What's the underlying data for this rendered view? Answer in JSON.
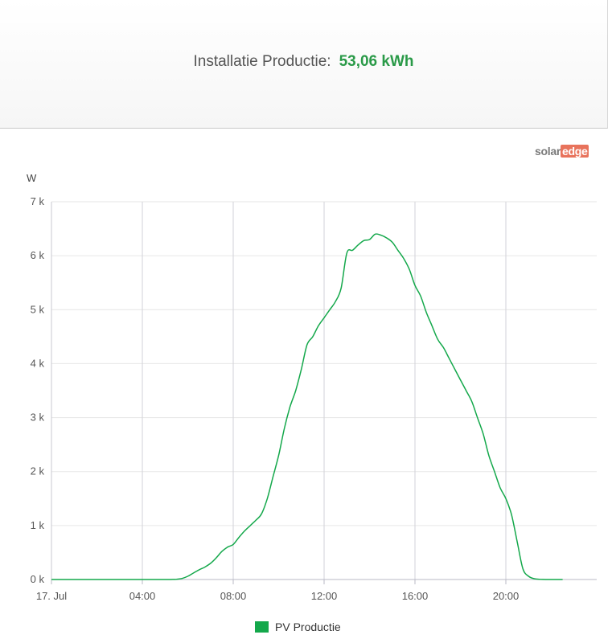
{
  "summary": {
    "label": "Installatie Productie:",
    "value": "53,06 kWh"
  },
  "logo": {
    "part1": "solar",
    "part2": "edge"
  },
  "chart_data": {
    "type": "line",
    "ylabel": "W",
    "x_ticks": [
      "17. Jul",
      "04:00",
      "08:00",
      "12:00",
      "16:00",
      "20:00"
    ],
    "y_ticks": [
      "0 k",
      "1 k",
      "2 k",
      "3 k",
      "4 k",
      "5 k",
      "6 k",
      "7 k"
    ],
    "ylim": [
      0,
      7000
    ],
    "xlim_hours": [
      0,
      24
    ],
    "grid": true,
    "legend_position": "bottom-center",
    "colors": {
      "line": "#14a84b",
      "grid": "#d2d2d8"
    },
    "series": [
      {
        "name": "PV Productie",
        "x": [
          0,
          1,
          2,
          3,
          4,
          5,
          5.25,
          5.5,
          5.75,
          6,
          6.25,
          6.5,
          6.75,
          7,
          7.25,
          7.5,
          7.75,
          8,
          8.25,
          8.5,
          8.75,
          9,
          9.25,
          9.5,
          9.75,
          10,
          10.25,
          10.5,
          10.75,
          11,
          11.25,
          11.5,
          11.75,
          12,
          12.25,
          12.5,
          12.75,
          13,
          13.25,
          13.5,
          13.75,
          14,
          14.25,
          14.5,
          14.75,
          15,
          15.25,
          15.5,
          15.75,
          16,
          16.25,
          16.5,
          16.75,
          17,
          17.25,
          17.5,
          17.75,
          18,
          18.25,
          18.5,
          18.75,
          19,
          19.25,
          19.5,
          19.75,
          20,
          20.25,
          20.5,
          20.75,
          21,
          21.25,
          21.5,
          21.75,
          22,
          22.5
        ],
        "values": [
          0,
          0,
          0,
          0,
          0,
          0,
          0,
          5,
          20,
          60,
          120,
          180,
          230,
          300,
          400,
          520,
          600,
          650,
          780,
          900,
          1000,
          1100,
          1220,
          1500,
          1900,
          2300,
          2800,
          3200,
          3500,
          3900,
          4350,
          4500,
          4700,
          4850,
          5000,
          5150,
          5400,
          6050,
          6100,
          6200,
          6280,
          6300,
          6400,
          6380,
          6330,
          6250,
          6100,
          5950,
          5750,
          5450,
          5250,
          4950,
          4700,
          4450,
          4300,
          4100,
          3900,
          3700,
          3500,
          3300,
          3000,
          2700,
          2300,
          2000,
          1700,
          1500,
          1200,
          700,
          200,
          60,
          15,
          5,
          0,
          0,
          0
        ]
      }
    ]
  }
}
